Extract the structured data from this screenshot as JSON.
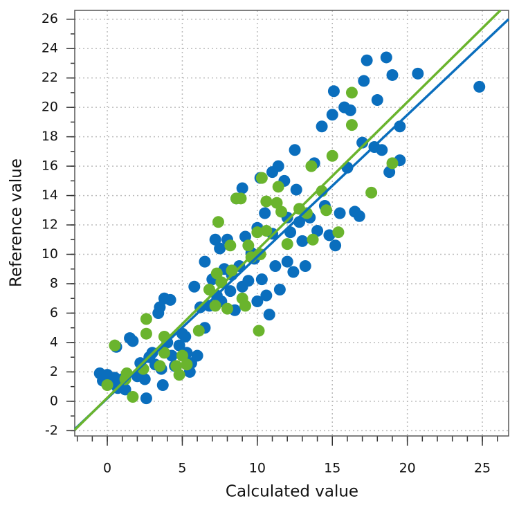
{
  "chart_data": {
    "type": "scatter",
    "xlabel": "Calculated value",
    "ylabel": "Reference value",
    "xlim": [
      -2.17,
      26.75
    ],
    "ylim": [
      -2.36,
      26.6
    ],
    "xticks": [
      0,
      5,
      10,
      15,
      20,
      25
    ],
    "yticks": [
      -2,
      0,
      2,
      4,
      6,
      8,
      10,
      12,
      14,
      16,
      18,
      20,
      22,
      24,
      26
    ],
    "grid": true,
    "series": [
      {
        "color": "#0a6ebd",
        "x": [
          -0.5,
          -0.3,
          0,
          0.2,
          0.5,
          0.7,
          0.6,
          1,
          1.2,
          1.5,
          1.7,
          2,
          2.2,
          2.5,
          2.6,
          2.8,
          3,
          3.2,
          3.4,
          3.5,
          3.6,
          3.7,
          3.8,
          4,
          4.2,
          4.3,
          4.5,
          4.8,
          5,
          5.2,
          5.3,
          5.5,
          5.6,
          5.8,
          6,
          6.2,
          6.5,
          6.5,
          6.8,
          7,
          7.2,
          7.3,
          7.5,
          7.6,
          7.8,
          8,
          8.2,
          8.3,
          8.5,
          8.6,
          8.8,
          9,
          9,
          9.2,
          9.4,
          9.6,
          9.8,
          10,
          10,
          10.2,
          10.3,
          10.5,
          10.6,
          10.8,
          11,
          11,
          11.2,
          11.4,
          11.5,
          11.8,
          12,
          12,
          12.2,
          12.4,
          12.5,
          12.6,
          12.8,
          13,
          13.2,
          13.5,
          13.8,
          14,
          14.3,
          14.5,
          14.8,
          15,
          15.1,
          15.2,
          15.5,
          15.8,
          16,
          16.2,
          16.5,
          16.8,
          17,
          17.1,
          17.3,
          17.8,
          18,
          18.3,
          18.6,
          18.8,
          19,
          19.5,
          19.5,
          20.7,
          24.8
        ],
        "values": [
          1.9,
          1.4,
          1.8,
          1.2,
          1.6,
          0.9,
          3.7,
          1.5,
          0.8,
          4.3,
          4.1,
          1.7,
          2.6,
          1.5,
          0.2,
          3,
          3.3,
          2.5,
          6,
          6.4,
          2.2,
          1.1,
          7,
          4,
          6.9,
          3.1,
          2.4,
          3.8,
          4.6,
          4.4,
          3.3,
          2,
          2.6,
          7.8,
          3.1,
          6.4,
          5,
          9.5,
          6.5,
          8.3,
          11,
          7.2,
          10.4,
          6.8,
          9,
          11,
          7.5,
          8.6,
          6.2,
          13.8,
          9.2,
          14.5,
          7.8,
          11.2,
          8.2,
          10.1,
          9.7,
          11.8,
          6.8,
          15.2,
          8.3,
          12.8,
          7.2,
          5.9,
          15.6,
          11.4,
          9.2,
          16,
          7.6,
          15,
          12.5,
          9.5,
          11.5,
          8.8,
          17.1,
          14.4,
          12.2,
          10.9,
          9.2,
          12.5,
          16.2,
          11.6,
          18.7,
          13.3,
          11.3,
          19.5,
          21.1,
          10.6,
          12.8,
          20,
          15.9,
          19.8,
          12.9,
          12.6,
          17.6,
          21.8,
          23.2,
          17.3,
          20.5,
          17.1,
          23.4,
          15.6,
          22.2,
          18.7,
          16.4,
          22.3,
          21.4
        ]
      },
      {
        "color": "#6ab42d",
        "x": [
          0,
          0.5,
          1.2,
          1.3,
          1.7,
          2.4,
          2.6,
          2.6,
          3.5,
          3.8,
          3.8,
          4.6,
          4.8,
          5,
          5.3,
          6.1,
          6.8,
          7.2,
          7.3,
          7.4,
          7.6,
          8,
          8.2,
          8.3,
          8.6,
          8.9,
          9,
          9.2,
          9.4,
          9.6,
          10,
          10.1,
          10.2,
          10.3,
          10.6,
          10.6,
          11.4,
          11.3,
          11.6,
          12,
          12.8,
          13.3,
          13.6,
          13.7,
          14.3,
          14.6,
          15,
          15.4,
          16.3,
          16.3,
          17.6,
          19
        ],
        "values": [
          1.1,
          3.8,
          1.5,
          1.9,
          0.3,
          2.2,
          5.6,
          4.6,
          2.4,
          4.4,
          3.3,
          2.4,
          1.8,
          3.1,
          2.5,
          4.8,
          7.6,
          6.5,
          8.7,
          12.2,
          8.1,
          6.3,
          10.6,
          8.9,
          13.8,
          13.8,
          7,
          6.5,
          10.6,
          9.8,
          11.5,
          4.8,
          10,
          15.2,
          13.6,
          11.6,
          14.6,
          13.5,
          12.9,
          10.7,
          13.1,
          12.8,
          16,
          11,
          14.3,
          13,
          16.7,
          11.5,
          21,
          18.8,
          14.2,
          16.2
        ]
      }
    ],
    "lines": [
      {
        "color": "#0a6ebd",
        "x": [
          -2.17,
          26.75
        ],
        "values": [
          -1.9,
          26.0
        ]
      },
      {
        "color": "#6ab42d",
        "x": [
          -2.17,
          26.2
        ],
        "values": [
          -1.95,
          26.6
        ]
      }
    ]
  }
}
